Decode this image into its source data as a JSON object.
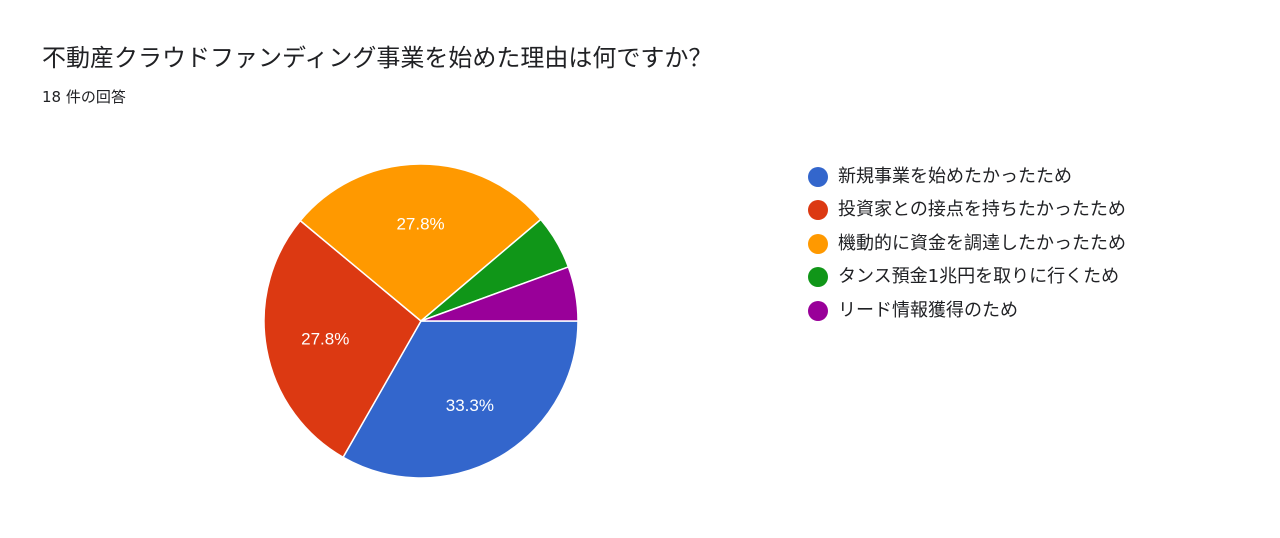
{
  "question": {
    "title": "不動産クラウドファンディング事業を始めた理由は何ですか？",
    "response_count": "18 件の回答"
  },
  "chart_data": {
    "type": "pie",
    "title": "",
    "categories": [
      "新規事業を始めたかったため",
      "投資家との接点を持ちたかったため",
      "機動的に資金を調達したかったため",
      "タンス預金1兆円を取りに行くため",
      "リード情報獲得のため"
    ],
    "values": [
      33.3,
      27.8,
      27.8,
      5.6,
      5.6
    ],
    "value_labels": [
      "33.3%",
      "27.8%",
      "27.8%",
      "",
      ""
    ],
    "colors": [
      "#3366cc",
      "#dc3912",
      "#ff9900",
      "#109618",
      "#990099"
    ],
    "legend_position": "right"
  }
}
